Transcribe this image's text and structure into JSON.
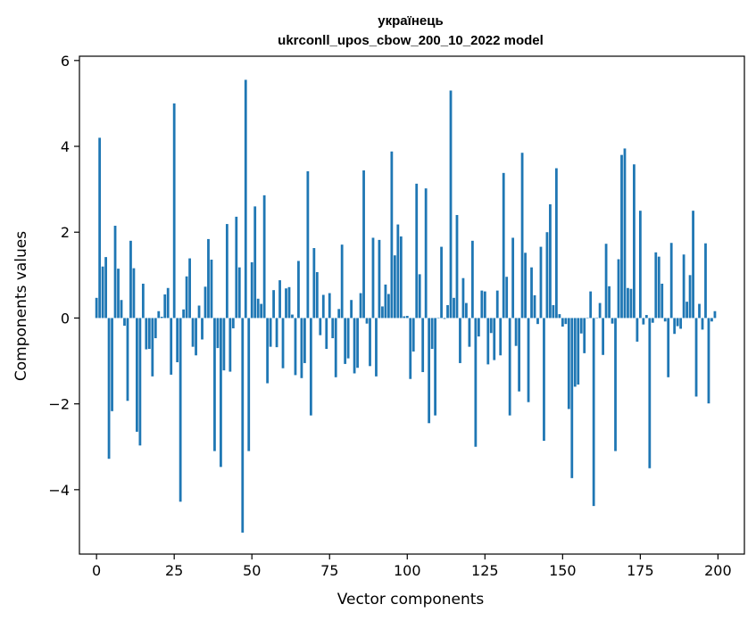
{
  "chart_data": {
    "type": "bar",
    "title": "українець",
    "subtitle": "ukrconll_upos_cbow_200_10_2022 model",
    "xlabel": "Vector components",
    "ylabel": "Components values",
    "xlim": [
      -5.5,
      208.5
    ],
    "ylim": [
      -5.5,
      6.1
    ],
    "xticks": [
      0,
      25,
      50,
      75,
      100,
      125,
      150,
      175,
      200
    ],
    "yticks": [
      -4,
      -2,
      0,
      2,
      4,
      6
    ],
    "grid": false,
    "bar_color": "#1f77b4",
    "values": [
      0.47,
      4.2,
      1.2,
      1.42,
      -3.28,
      -2.17,
      2.15,
      1.15,
      0.42,
      -0.18,
      -1.93,
      1.8,
      1.16,
      -2.65,
      -2.97,
      0.8,
      -0.73,
      -0.72,
      -1.36,
      -0.47,
      0.16,
      0.03,
      0.55,
      0.7,
      -1.32,
      5.0,
      -1.03,
      -4.28,
      0.2,
      0.97,
      1.39,
      -0.67,
      -0.87,
      0.29,
      -0.5,
      0.73,
      1.84,
      1.36,
      -3.1,
      -0.7,
      -3.47,
      -1.22,
      2.19,
      -1.25,
      -0.24,
      2.36,
      1.18,
      -5.0,
      5.55,
      -3.1,
      1.3,
      2.6,
      0.45,
      0.33,
      2.86,
      -1.52,
      -0.67,
      0.65,
      -0.68,
      0.88,
      -1.17,
      0.69,
      0.72,
      0.08,
      -1.33,
      1.33,
      -1.4,
      -1.05,
      3.42,
      -2.27,
      1.63,
      1.07,
      -0.4,
      0.54,
      -0.72,
      0.58,
      -0.47,
      -1.38,
      0.21,
      1.71,
      -1.07,
      -0.94,
      0.42,
      -1.29,
      -1.16,
      0.58,
      3.44,
      -0.13,
      -1.12,
      1.87,
      -1.36,
      1.82,
      0.27,
      0.78,
      0.56,
      3.88,
      1.46,
      2.18,
      1.9,
      0.04,
      0.05,
      -1.42,
      -0.78,
      3.13,
      1.02,
      -1.26,
      3.02,
      -2.45,
      -0.72,
      -2.27,
      0.01,
      1.66,
      -0.02,
      0.3,
      5.3,
      0.47,
      2.4,
      -1.05,
      0.93,
      0.35,
      -0.67,
      1.8,
      -3.0,
      -0.43,
      0.64,
      0.62,
      -1.08,
      -0.35,
      -0.98,
      0.64,
      -0.87,
      3.38,
      0.96,
      -2.27,
      1.87,
      -0.65,
      -1.71,
      3.85,
      1.52,
      -1.96,
      1.18,
      0.53,
      -0.14,
      1.66,
      -2.86,
      2.0,
      2.65,
      0.3,
      3.49,
      0.09,
      -0.2,
      -0.14,
      -2.12,
      -3.73,
      -1.6,
      -1.55,
      -0.36,
      -0.82,
      0.01,
      0.62,
      -4.38,
      0.01,
      0.35,
      -0.86,
      1.73,
      0.74,
      -0.13,
      -3.1,
      1.37,
      3.8,
      3.95,
      0.7,
      0.68,
      3.58,
      -0.55,
      2.5,
      -0.15,
      0.07,
      -3.5,
      -0.11,
      1.53,
      1.43,
      0.8,
      -0.08,
      -1.38,
      1.75,
      -0.37,
      -0.19,
      -0.25,
      1.48,
      0.38,
      1.0,
      2.5,
      -1.83,
      0.33,
      -0.27,
      1.74,
      -1.99,
      -0.08,
      0.16
    ]
  }
}
